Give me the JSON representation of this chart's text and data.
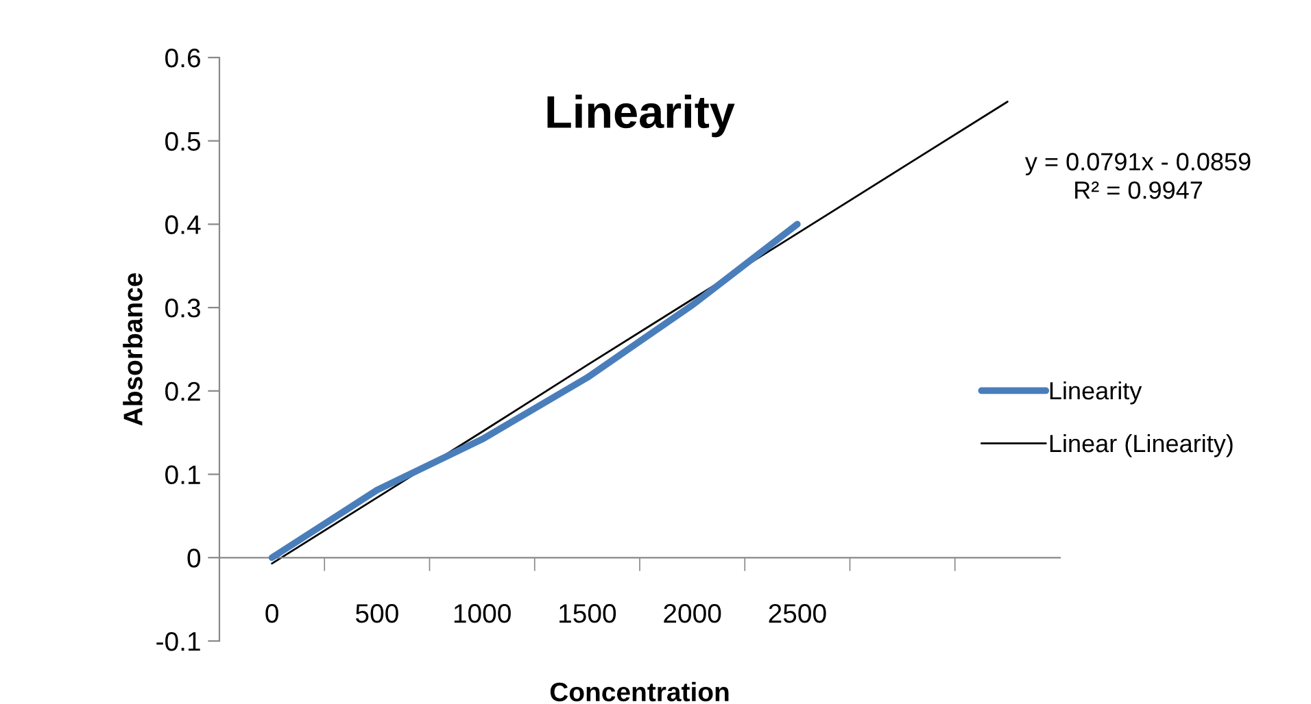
{
  "chart_data": {
    "type": "line",
    "title": "Linearity",
    "xlabel": "Concentration",
    "ylabel": "Absorbance",
    "categories": [
      "0",
      "500",
      "1000",
      "1500",
      "2000",
      "2500",
      null,
      null
    ],
    "series": [
      {
        "name": "Linearity",
        "color": "#4a7ebb",
        "values": [
          0,
          0.081,
          0.142,
          0.216,
          0.303,
          0.4,
          null,
          null
        ]
      },
      {
        "name": "Linear (Linearity)",
        "color": "#000000",
        "values": [
          -0.007,
          0.072,
          0.151,
          0.231,
          0.31,
          0.389,
          0.468,
          0.547
        ]
      }
    ],
    "annotations": [
      "y = 0.0791x - 0.0859\nR² = 0.9947"
    ],
    "ylim": [
      -0.1,
      0.6
    ],
    "yticks": [
      -0.1,
      0,
      0.1,
      0.2,
      0.3,
      0.4,
      0.5,
      0.6
    ],
    "grid": false,
    "legend": "right",
    "marker": "none",
    "line_style": "solid"
  }
}
